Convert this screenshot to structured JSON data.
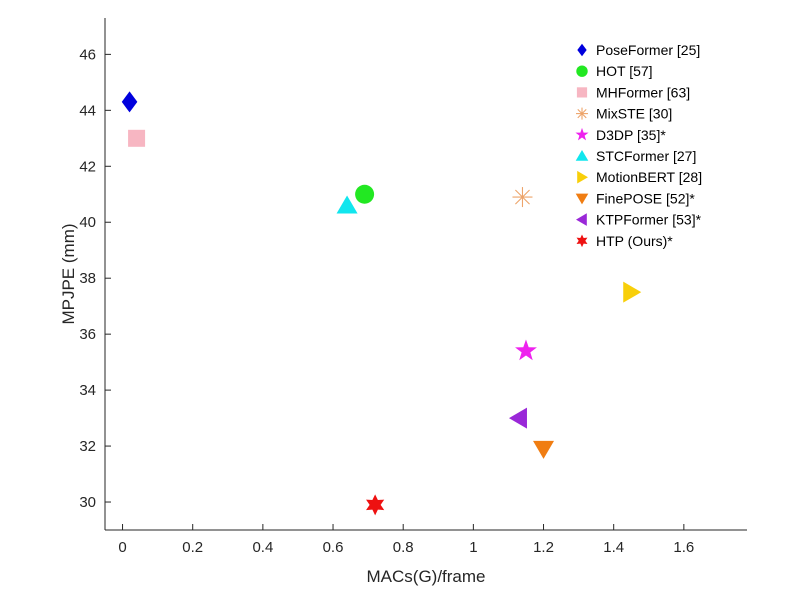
{
  "chart_data": {
    "type": "scatter",
    "title": "",
    "xlabel": "MACs(G)/frame",
    "ylabel": "MPJPE (mm)",
    "xlim": [
      -0.05,
      1.78
    ],
    "ylim": [
      29,
      47.3
    ],
    "xticks": [
      0,
      0.2,
      0.4,
      0.6,
      0.8,
      1,
      1.2,
      1.4,
      1.6
    ],
    "xtick_labels": [
      "0",
      "0.2",
      "0.4",
      "0.6",
      "0.8",
      "1",
      "1.2",
      "1.4",
      "1.6"
    ],
    "yticks": [
      30,
      32,
      34,
      36,
      38,
      40,
      42,
      44,
      46
    ],
    "ytick_labels": [
      "30",
      "32",
      "34",
      "36",
      "38",
      "40",
      "42",
      "44",
      "46"
    ],
    "grid": false,
    "legend_position": "top-right",
    "series": [
      {
        "name": "PoseFormer [25]",
        "x": 0.02,
        "y": 44.3,
        "marker": "diamond",
        "color": "#0000dd"
      },
      {
        "name": "HOT [57]",
        "x": 0.69,
        "y": 41.0,
        "marker": "circle",
        "color": "#22e822"
      },
      {
        "name": "MHFormer [63]",
        "x": 0.04,
        "y": 43.0,
        "marker": "square",
        "color": "#f7b6c2"
      },
      {
        "name": "MixSTE [30]",
        "x": 1.14,
        "y": 40.9,
        "marker": "asterisk",
        "color": "#eda46a"
      },
      {
        "name": "D3DP [35]*",
        "x": 1.15,
        "y": 35.4,
        "marker": "star5",
        "color": "#ee22ee"
      },
      {
        "name": "STCFormer [27]",
        "x": 0.64,
        "y": 40.6,
        "marker": "triangle-up",
        "color": "#11e6ee"
      },
      {
        "name": "MotionBERT [28]",
        "x": 1.45,
        "y": 37.5,
        "marker": "triangle-right",
        "color": "#f8cf0a"
      },
      {
        "name": "FinePOSE [52]*",
        "x": 1.2,
        "y": 31.9,
        "marker": "triangle-down",
        "color": "#f07d12"
      },
      {
        "name": "KTPFormer [53]*",
        "x": 1.13,
        "y": 33.0,
        "marker": "triangle-left",
        "color": "#9a28d8"
      },
      {
        "name": "HTP (Ours)*",
        "x": 0.72,
        "y": 29.9,
        "marker": "star6",
        "color": "#ee1111"
      }
    ]
  }
}
